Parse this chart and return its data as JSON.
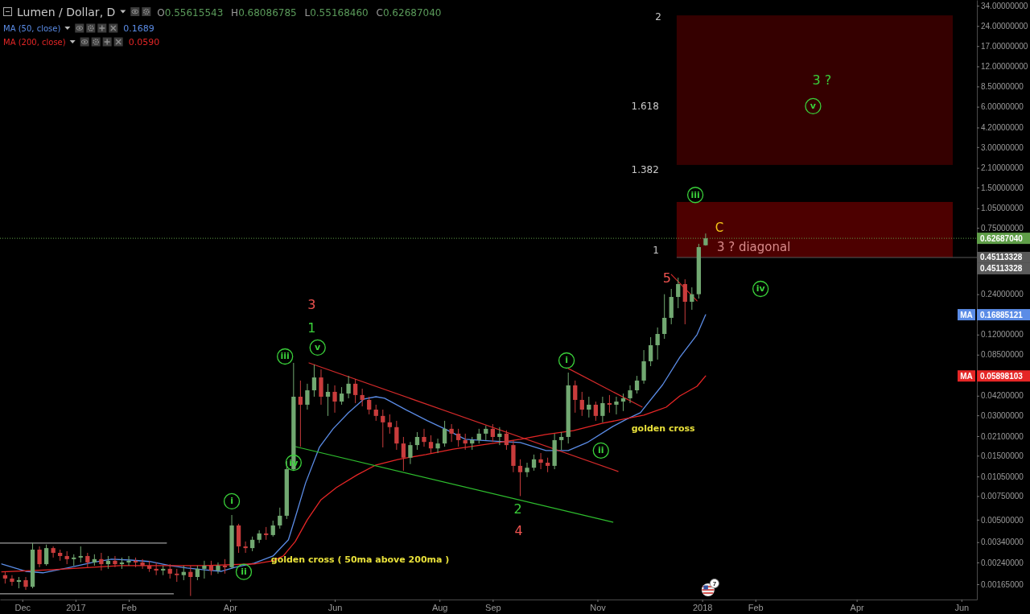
{
  "chart_data": {
    "type": "candlestick",
    "title": "Lumen / Dollar, D",
    "x": [
      "2016-11-21",
      "2016-11-25",
      "2016-11-29",
      "2016-12-03",
      "2016-12-07",
      "2016-12-11",
      "2016-12-15",
      "2016-12-19",
      "2016-12-23",
      "2016-12-27",
      "2016-12-31",
      "2017-01-04",
      "2017-01-08",
      "2017-01-12",
      "2017-01-16",
      "2017-01-20",
      "2017-01-24",
      "2017-01-28",
      "2017-02-01",
      "2017-02-05",
      "2017-02-09",
      "2017-02-13",
      "2017-02-17",
      "2017-02-21",
      "2017-02-25",
      "2017-03-01",
      "2017-03-05",
      "2017-03-09",
      "2017-03-13",
      "2017-03-17",
      "2017-03-21",
      "2017-03-25",
      "2017-03-29",
      "2017-04-02",
      "2017-04-06",
      "2017-04-10",
      "2017-04-14",
      "2017-04-18",
      "2017-04-22",
      "2017-04-26",
      "2017-04-30",
      "2017-05-04",
      "2017-05-08",
      "2017-05-12",
      "2017-05-16",
      "2017-05-20",
      "2017-05-24",
      "2017-05-28",
      "2017-06-01",
      "2017-06-05",
      "2017-06-09",
      "2017-06-13",
      "2017-06-17",
      "2017-06-21",
      "2017-06-25",
      "2017-06-29",
      "2017-07-03",
      "2017-07-07",
      "2017-07-11",
      "2017-07-15",
      "2017-07-19",
      "2017-07-23",
      "2017-07-27",
      "2017-07-31",
      "2017-08-04",
      "2017-08-08",
      "2017-08-12",
      "2017-08-16",
      "2017-08-20",
      "2017-08-24",
      "2017-08-28",
      "2017-09-01",
      "2017-09-05",
      "2017-09-09",
      "2017-09-13",
      "2017-09-17",
      "2017-09-21",
      "2017-09-25",
      "2017-09-29",
      "2017-10-03",
      "2017-10-07",
      "2017-10-11",
      "2017-10-15",
      "2017-10-19",
      "2017-10-23",
      "2017-10-27",
      "2017-10-31",
      "2017-11-04",
      "2017-11-08",
      "2017-11-12",
      "2017-11-16",
      "2017-11-20",
      "2017-11-24",
      "2017-11-28",
      "2017-12-02",
      "2017-12-06",
      "2017-12-10",
      "2017-12-14",
      "2017-12-18",
      "2017-12-22",
      "2017-12-26",
      "2017-12-30",
      "2018-01-03"
    ],
    "ohlc": [
      [
        0.00193,
        0.00204,
        0.00167,
        0.00182
      ],
      [
        0.00182,
        0.00193,
        0.00161,
        0.00172
      ],
      [
        0.00172,
        0.00187,
        0.00154,
        0.00177
      ],
      [
        0.00177,
        0.00187,
        0.0015,
        0.00158
      ],
      [
        0.00158,
        0.00335,
        0.00154,
        0.00299
      ],
      [
        0.00299,
        0.00316,
        0.00221,
        0.00233
      ],
      [
        0.00233,
        0.00326,
        0.00227,
        0.00307
      ],
      [
        0.00307,
        0.00316,
        0.00261,
        0.00283
      ],
      [
        0.00283,
        0.00299,
        0.00247,
        0.00268
      ],
      [
        0.00268,
        0.00291,
        0.00233,
        0.00254
      ],
      [
        0.00254,
        0.00276,
        0.00227,
        0.00261
      ],
      [
        0.00261,
        0.00316,
        0.0024,
        0.00268
      ],
      [
        0.00268,
        0.00283,
        0.00221,
        0.0024
      ],
      [
        0.0024,
        0.00276,
        0.00227,
        0.00254
      ],
      [
        0.00254,
        0.00283,
        0.00209,
        0.00233
      ],
      [
        0.00233,
        0.00268,
        0.00215,
        0.00247
      ],
      [
        0.00247,
        0.00268,
        0.00221,
        0.00233
      ],
      [
        0.00233,
        0.00261,
        0.00215,
        0.0024
      ],
      [
        0.0024,
        0.00268,
        0.00227,
        0.00247
      ],
      [
        0.00247,
        0.00261,
        0.00221,
        0.0024
      ],
      [
        0.0024,
        0.00254,
        0.00215,
        0.00227
      ],
      [
        0.00227,
        0.00247,
        0.00204,
        0.00215
      ],
      [
        0.00215,
        0.0024,
        0.00193,
        0.00209
      ],
      [
        0.00209,
        0.00227,
        0.00193,
        0.00215
      ],
      [
        0.00215,
        0.00233,
        0.00182,
        0.00198
      ],
      [
        0.00198,
        0.00215,
        0.00172,
        0.00193
      ],
      [
        0.00193,
        0.00227,
        0.00177,
        0.00204
      ],
      [
        0.00204,
        0.00227,
        0.00135,
        0.00187
      ],
      [
        0.00187,
        0.00227,
        0.00177,
        0.00215
      ],
      [
        0.00215,
        0.00247,
        0.00182,
        0.00227
      ],
      [
        0.00227,
        0.00247,
        0.00193,
        0.00209
      ],
      [
        0.00209,
        0.0024,
        0.00198,
        0.00227
      ],
      [
        0.00227,
        0.00254,
        0.00198,
        0.00221
      ],
      [
        0.00221,
        0.00542,
        0.00215,
        0.00453
      ],
      [
        0.00453,
        0.00466,
        0.00283,
        0.00316
      ],
      [
        0.00316,
        0.00344,
        0.00283,
        0.00307
      ],
      [
        0.00307,
        0.00374,
        0.00291,
        0.00354
      ],
      [
        0.00354,
        0.00417,
        0.00335,
        0.00395
      ],
      [
        0.00395,
        0.00441,
        0.00354,
        0.00384
      ],
      [
        0.00384,
        0.00492,
        0.00374,
        0.00453
      ],
      [
        0.00453,
        0.00615,
        0.00429,
        0.00535
      ],
      [
        0.00535,
        0.0137,
        0.00506,
        0.0119
      ],
      [
        0.0119,
        0.0738,
        0.0116,
        0.0413
      ],
      [
        0.0413,
        0.0545,
        0.0175,
        0.036
      ],
      [
        0.036,
        0.0516,
        0.0331,
        0.0461
      ],
      [
        0.0461,
        0.0718,
        0.0413,
        0.0575
      ],
      [
        0.0575,
        0.066,
        0.036,
        0.0413
      ],
      [
        0.0413,
        0.0516,
        0.0297,
        0.0449
      ],
      [
        0.0449,
        0.0502,
        0.0314,
        0.038
      ],
      [
        0.038,
        0.0487,
        0.036,
        0.0436
      ],
      [
        0.0436,
        0.0591,
        0.0402,
        0.0516
      ],
      [
        0.0516,
        0.056,
        0.037,
        0.0425
      ],
      [
        0.0425,
        0.0474,
        0.035,
        0.0391
      ],
      [
        0.0391,
        0.0413,
        0.0305,
        0.0331
      ],
      [
        0.0331,
        0.036,
        0.0273,
        0.0297
      ],
      [
        0.0297,
        0.0331,
        0.0173,
        0.0266
      ],
      [
        0.0266,
        0.0305,
        0.0219,
        0.0245
      ],
      [
        0.0245,
        0.0273,
        0.0166,
        0.0185
      ],
      [
        0.0185,
        0.0207,
        0.0116,
        0.0145
      ],
      [
        0.0145,
        0.019,
        0.013,
        0.018
      ],
      [
        0.018,
        0.0225,
        0.0166,
        0.0207
      ],
      [
        0.0207,
        0.0238,
        0.0175,
        0.019
      ],
      [
        0.019,
        0.0213,
        0.0157,
        0.017
      ],
      [
        0.017,
        0.0201,
        0.0157,
        0.0185
      ],
      [
        0.0185,
        0.0273,
        0.0175,
        0.0238
      ],
      [
        0.0238,
        0.0258,
        0.019,
        0.0219
      ],
      [
        0.0219,
        0.0238,
        0.0175,
        0.0196
      ],
      [
        0.0196,
        0.0219,
        0.0166,
        0.0185
      ],
      [
        0.0185,
        0.0207,
        0.0166,
        0.0196
      ],
      [
        0.0196,
        0.0238,
        0.0185,
        0.0219
      ],
      [
        0.0219,
        0.0251,
        0.0196,
        0.0238
      ],
      [
        0.0238,
        0.0258,
        0.019,
        0.0207
      ],
      [
        0.0207,
        0.0245,
        0.018,
        0.0219
      ],
      [
        0.0219,
        0.0232,
        0.0166,
        0.018
      ],
      [
        0.018,
        0.0196,
        0.0113,
        0.0126
      ],
      [
        0.0126,
        0.0141,
        0.0075,
        0.0113
      ],
      [
        0.0113,
        0.0133,
        0.0104,
        0.0122
      ],
      [
        0.0122,
        0.0153,
        0.0116,
        0.0141
      ],
      [
        0.0141,
        0.0157,
        0.0119,
        0.0133
      ],
      [
        0.0133,
        0.0145,
        0.0113,
        0.0126
      ],
      [
        0.0126,
        0.0219,
        0.0119,
        0.0196
      ],
      [
        0.0196,
        0.0225,
        0.0166,
        0.0207
      ],
      [
        0.0207,
        0.0625,
        0.0185,
        0.0502
      ],
      [
        0.0502,
        0.0545,
        0.0314,
        0.0391
      ],
      [
        0.0391,
        0.0449,
        0.0297,
        0.0331
      ],
      [
        0.0331,
        0.0413,
        0.0289,
        0.036
      ],
      [
        0.036,
        0.038,
        0.0273,
        0.0297
      ],
      [
        0.0297,
        0.0413,
        0.0266,
        0.037
      ],
      [
        0.037,
        0.0425,
        0.0314,
        0.036
      ],
      [
        0.036,
        0.0413,
        0.0305,
        0.038
      ],
      [
        0.038,
        0.0436,
        0.0323,
        0.0402
      ],
      [
        0.0402,
        0.0502,
        0.037,
        0.0461
      ],
      [
        0.0461,
        0.0591,
        0.0436,
        0.0545
      ],
      [
        0.0545,
        0.092,
        0.0516,
        0.0759
      ],
      [
        0.0759,
        0.1148,
        0.0698,
        0.1
      ],
      [
        0.1,
        0.1356,
        0.0781,
        0.1213
      ],
      [
        0.1213,
        0.24,
        0.1116,
        0.16
      ],
      [
        0.16,
        0.263,
        0.1433,
        0.229
      ],
      [
        0.229,
        0.319,
        0.1888,
        0.2857
      ],
      [
        0.2857,
        0.31,
        0.1433,
        0.2108
      ],
      [
        0.2108,
        0.27,
        0.1837,
        0.24
      ],
      [
        0.24,
        0.57,
        0.2228,
        0.539
      ],
      [
        0.55615543,
        0.68086785,
        0.5516846,
        0.6268704
      ]
    ],
    "series": [
      {
        "name": "MA (50, close)",
        "type": "line",
        "color": "#5b8ce6",
        "x": [
          "2016-11-19",
          "2016-12-03",
          "2016-12-13",
          "2016-12-27",
          "2017-01-11",
          "2017-01-22",
          "2017-02-02",
          "2017-02-13",
          "2017-02-25",
          "2017-03-07",
          "2017-03-16",
          "2017-03-27",
          "2017-04-04",
          "2017-04-15",
          "2017-04-26",
          "2017-05-05",
          "2017-05-09",
          "2017-05-15",
          "2017-05-23",
          "2017-05-31",
          "2017-06-09",
          "2017-06-18",
          "2017-06-25",
          "2017-06-30",
          "2017-07-13",
          "2017-07-25",
          "2017-08-04",
          "2017-08-16",
          "2017-09-01",
          "2017-09-17",
          "2017-10-02",
          "2017-10-15",
          "2017-10-26",
          "2017-11-10",
          "2017-11-18",
          "2017-11-26",
          "2017-12-09",
          "2017-12-19",
          "2017-12-29",
          "2018-01-03"
        ],
        "values": [
          0.00234,
          0.00206,
          0.00201,
          0.00218,
          0.0024,
          0.00254,
          0.0025,
          0.00244,
          0.00227,
          0.00218,
          0.00212,
          0.00206,
          0.00221,
          0.00237,
          0.00268,
          0.00354,
          0.0052,
          0.0094,
          0.0173,
          0.0238,
          0.0314,
          0.0397,
          0.0413,
          0.0402,
          0.0327,
          0.0273,
          0.0238,
          0.0199,
          0.0193,
          0.0188,
          0.0164,
          0.0164,
          0.0188,
          0.0248,
          0.0281,
          0.0314,
          0.0508,
          0.0813,
          0.12,
          0.16885121
        ]
      },
      {
        "name": "MA (200, close)",
        "type": "line",
        "color": "#e52626",
        "x": [
          "2016-11-19",
          "2016-12-19",
          "2017-01-27",
          "2017-03-15",
          "2017-04-15",
          "2017-04-26",
          "2017-05-02",
          "2017-05-09",
          "2017-05-16",
          "2017-05-24",
          "2017-06-02",
          "2017-06-14",
          "2017-06-25",
          "2017-07-08",
          "2017-07-24",
          "2017-08-09",
          "2017-08-25",
          "2017-09-17",
          "2017-10-02",
          "2017-10-18",
          "2017-11-04",
          "2017-11-28",
          "2017-12-11",
          "2017-12-19",
          "2017-12-29",
          "2018-01-03"
        ],
        "values": [
          0.00204,
          0.00212,
          0.00227,
          0.00227,
          0.00234,
          0.00247,
          0.00268,
          0.00344,
          0.005,
          0.00705,
          0.0087,
          0.0108,
          0.0128,
          0.0141,
          0.0153,
          0.0168,
          0.018,
          0.0199,
          0.0216,
          0.0231,
          0.0262,
          0.0301,
          0.0345,
          0.0419,
          0.0494,
          0.05898103
        ]
      },
      {
        "type": "line",
        "color": "#d42a2a",
        "x": [
          "2017-05-17",
          "2017-11-13"
        ],
        "values": [
          0.0738,
          0.01145
        ]
      },
      {
        "type": "line",
        "color": "#2ebd2e",
        "x": [
          "2017-05-09",
          "2017-11-10"
        ],
        "values": [
          0.01754,
          0.00479
        ]
      },
      {
        "type": "line",
        "color": "#d42a2a",
        "x": [
          "2017-10-15",
          "2017-11-27"
        ],
        "values": [
          0.0671,
          0.0346
        ]
      },
      {
        "type": "line",
        "color": "#d42a2a",
        "x": [
          "2017-12-14",
          "2017-12-29"
        ],
        "values": [
          0.337,
          0.214
        ]
      },
      {
        "type": "line",
        "color": "#9e9e9e",
        "x": [
          "2016-11-18",
          "2017-02-23"
        ],
        "values": [
          0.00335,
          0.00335
        ]
      },
      {
        "type": "line",
        "color": "#9e9e9e",
        "x": [
          "2016-11-18",
          "2017-02-27"
        ],
        "values": [
          0.0014,
          0.0014
        ]
      }
    ],
    "xlim": [
      "2016-11-18",
      "2018-06-10"
    ],
    "xticks": [
      {
        "value": "2016-12-01",
        "label": "Dec"
      },
      {
        "value": "2017-01-01",
        "label": "2017"
      },
      {
        "value": "2017-02-01",
        "label": "Feb"
      },
      {
        "value": "2017-04-01",
        "label": "Apr"
      },
      {
        "value": "2017-06-01",
        "label": "Jun"
      },
      {
        "value": "2017-08-01",
        "label": "Aug"
      },
      {
        "value": "2017-09-01",
        "label": "Sep"
      },
      {
        "value": "2017-11-01",
        "label": "Nov"
      },
      {
        "value": "2018-01-01",
        "label": "2018"
      },
      {
        "value": "2018-02-01",
        "label": "Feb"
      },
      {
        "value": "2018-04-01",
        "label": "Apr"
      },
      {
        "value": "2018-06-01",
        "label": "Jun"
      }
    ],
    "ylim": [
      0.00127,
      37.5
    ],
    "yticks": [
      {
        "value": 34,
        "label": "34.00000000"
      },
      {
        "value": 24,
        "label": "24.00000000"
      },
      {
        "value": 17,
        "label": "17.00000000"
      },
      {
        "value": 12,
        "label": "12.00000000"
      },
      {
        "value": 8.5,
        "label": "8.50000000"
      },
      {
        "value": 6,
        "label": "6.00000000"
      },
      {
        "value": 4.2,
        "label": "4.20000000"
      },
      {
        "value": 3,
        "label": "3.00000000"
      },
      {
        "value": 2.1,
        "label": "2.10000000"
      },
      {
        "value": 1.5,
        "label": "1.50000000"
      },
      {
        "value": 1.05,
        "label": "1.05000000"
      },
      {
        "value": 0.75,
        "label": "0.75000000"
      },
      {
        "value": 0.24,
        "label": "0.24000000"
      },
      {
        "value": 0.12,
        "label": "0.12000000"
      },
      {
        "value": 0.085,
        "label": "0.08500000"
      },
      {
        "value": 0.042,
        "label": "0.04200000"
      },
      {
        "value": 0.03,
        "label": "0.03000000"
      },
      {
        "value": 0.021,
        "label": "0.02100000"
      },
      {
        "value": 0.015,
        "label": "0.01500000"
      },
      {
        "value": 0.0105,
        "label": "0.01050000"
      },
      {
        "value": 0.0075,
        "label": "0.00750000"
      },
      {
        "value": 0.005,
        "label": "0.00500000"
      },
      {
        "value": 0.0034,
        "label": "0.00340000"
      },
      {
        "value": 0.0024,
        "label": "0.00240000"
      },
      {
        "value": 0.00165,
        "label": "0.00165000"
      }
    ],
    "log": "y",
    "legend": "top left",
    "bands": [
      {
        "axis": "y",
        "from": 2.21,
        "to": 28.8,
        "color": "#350000"
      },
      {
        "axis": "y",
        "from": 0.45113328,
        "to": 1.17,
        "color": "#4d0000"
      }
    ],
    "ref_lines": [
      {
        "axis": "y",
        "value": 0.6268704,
        "label": "0.62687040",
        "color": "#5f9e48",
        "line_style": "dotted"
      },
      {
        "axis": "y",
        "value": 0.45113328,
        "label": "0.45113328",
        "color": "#5a5a5a"
      }
    ],
    "annotations": [
      "O0.55615543 H0.68086785 L0.55168460 C0.62687040",
      "7",
      {
        "text": "2",
        "x": "2017-12-19",
        "y": 28.8
      },
      {
        "text": "1.618",
        "x": "2017-12-19",
        "y": 6.04
      },
      {
        "text": "1.382",
        "x": "2017-12-19",
        "y": 2.21
      },
      {
        "text": "1",
        "x": "2017-12-19",
        "y": 0.45113328
      },
      "3",
      {
        "text": "1",
        "x": "2017-05-20",
        "y": 0.0718
      },
      {
        "text": "v",
        "x": "2017-05-22",
        "y": 0.096
      },
      {
        "text": "iii",
        "x": "2017-05-03",
        "y": 0.0824
      },
      {
        "text": "iv",
        "x": "2017-05-08",
        "y": 0.0133
      },
      {
        "text": "i",
        "x": "2017-04-02",
        "y": 0.00686
      },
      {
        "text": "ii",
        "x": "2017-04-09",
        "y": 0.00204
      },
      {
        "text": "golden cross ( 50ma above 200ma )",
        "x": "2017-04-15",
        "y": 0.00234
      },
      {
        "text": "2",
        "x": "2017-09-17",
        "y": 0.0075
      },
      {
        "text": "4",
        "x": "2017-09-17",
        "y": 0.0075
      },
      {
        "text": "i",
        "x": "2017-10-14",
        "y": 0.0769
      },
      {
        "text": "ii",
        "x": "2017-11-03",
        "y": 0.0164
      },
      {
        "text": "golden cross",
        "x": "2017-11-18",
        "y": 0.0281
      },
      {
        "text": "5",
        "x": "2017-12-18",
        "y": 0.319
      },
      {
        "text": "iii",
        "x": "2017-12-28",
        "y": 1.32
      },
      {
        "text": "C",
        "x": "2018-01-03",
        "y": 0.68086785
      },
      {
        "text": "3 ? diagonal",
        "x": "2018-01-03",
        "y": 0.6268704
      },
      {
        "text": "iv",
        "x": "2018-02-04",
        "y": 0.263
      },
      "3 ?",
      "v",
      "MA",
      "0.16885121",
      "MA",
      "0.05898103",
      "0.1689",
      "0.0590",
      "0.45113328"
    ]
  }
}
